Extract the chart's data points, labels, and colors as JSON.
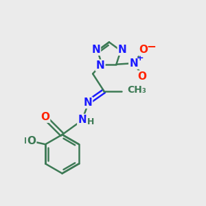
{
  "bg_color": "#ebebeb",
  "bond_color": "#3d7a55",
  "bond_width": 1.8,
  "atom_colors": {
    "N": "#1a1aff",
    "O": "#ff2200",
    "C": "#3d7a55",
    "H": "#3d7a55"
  },
  "font_size_atom": 11,
  "font_size_h": 9,
  "font_size_charge": 8,
  "figsize": [
    3.0,
    3.0
  ],
  "dpi": 100
}
